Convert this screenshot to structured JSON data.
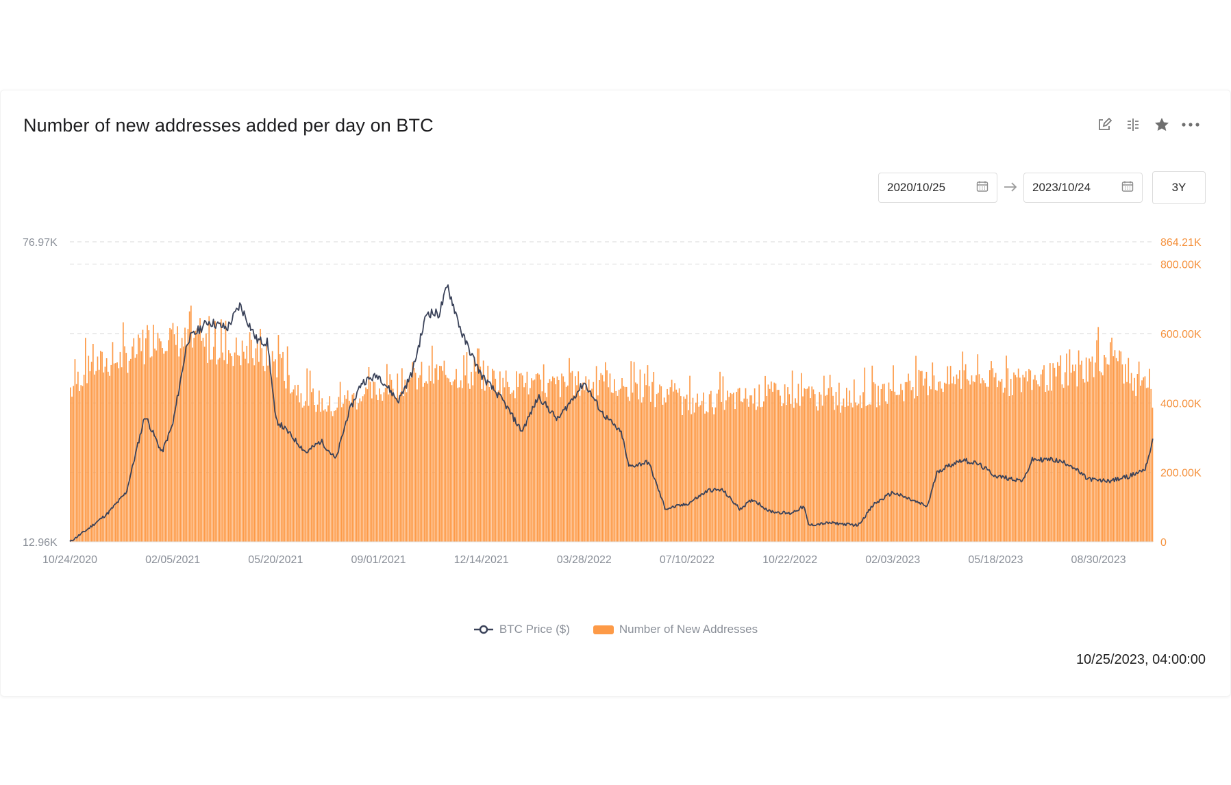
{
  "card": {
    "title": "Number of new addresses added per day on BTC",
    "toolbar": [
      {
        "name": "edit-icon"
      },
      {
        "name": "compare-icon"
      },
      {
        "name": "star-icon"
      },
      {
        "name": "more-icon"
      }
    ],
    "date_from": "2020/10/25",
    "date_to": "2023/10/24",
    "range_button": "3Y",
    "timestamp": "10/25/2023, 04:00:00"
  },
  "colors": {
    "bars": "#fd9a47",
    "line": "#3a4259",
    "right_axis_text": "#f5923e",
    "left_axis_text": "#8a8f98",
    "grid": "#d9d9d9"
  },
  "chart_data": {
    "type": "bar",
    "title": "Number of new addresses added per day on BTC",
    "x_tick_labels": [
      "10/24/2020",
      "02/05/2021",
      "05/20/2021",
      "09/01/2021",
      "12/14/2021",
      "03/28/2022",
      "07/10/2022",
      "10/22/2022",
      "02/03/2023",
      "05/18/2023",
      "08/30/2023"
    ],
    "x_range": [
      "10/24/2020",
      "10/24/2023"
    ],
    "y_left": {
      "labels": [
        "76.97K",
        "12.96K"
      ],
      "range": [
        12960,
        76970
      ],
      "series": "BTC Price ($)"
    },
    "y_right": {
      "labels": [
        "864.21K",
        "800.00K",
        "600.00K",
        "400.00K",
        "200.00K",
        "0"
      ],
      "range": [
        0,
        864210
      ],
      "series": "Number of New Addresses"
    },
    "grid": true,
    "legend_position": "bottom",
    "series": [
      {
        "name": "Number of New Addresses",
        "type": "bar",
        "axis": "right",
        "x": [
          "10/24/2020",
          "11/15/2020",
          "12/15/2020",
          "01/05/2021",
          "01/20/2021",
          "02/05/2021",
          "03/01/2021",
          "04/01/2021",
          "05/01/2021",
          "05/20/2021",
          "06/15/2021",
          "07/15/2021",
          "08/01/2021",
          "09/01/2021",
          "10/01/2021",
          "11/01/2021",
          "12/14/2021",
          "01/15/2022",
          "02/15/2022",
          "03/28/2022",
          "04/15/2022",
          "05/15/2022",
          "06/15/2022",
          "07/10/2022",
          "08/15/2022",
          "09/15/2022",
          "10/22/2022",
          "11/15/2022",
          "12/15/2022",
          "01/05/2023",
          "02/03/2023",
          "03/01/2023",
          "04/01/2023",
          "05/01/2023",
          "05/18/2023",
          "06/15/2023",
          "07/15/2023",
          "08/01/2023",
          "08/30/2023",
          "09/15/2023",
          "10/01/2023",
          "10/24/2023"
        ],
        "values": [
          450000,
          510000,
          530000,
          560000,
          610000,
          590000,
          570000,
          560000,
          540000,
          520000,
          430000,
          390000,
          410000,
          440000,
          470000,
          490000,
          480000,
          460000,
          450000,
          460000,
          450000,
          440000,
          420000,
          400000,
          410000,
          420000,
          430000,
          420000,
          410000,
          420000,
          440000,
          460000,
          470000,
          480000,
          460000,
          470000,
          480000,
          490000,
          520000,
          560000,
          450000,
          420000
        ]
      },
      {
        "name": "BTC Price ($)",
        "type": "line",
        "axis": "left",
        "x": [
          "10/24/2020",
          "11/10/2020",
          "12/01/2020",
          "12/20/2020",
          "01/08/2021",
          "01/25/2021",
          "02/05/2021",
          "02/20/2021",
          "03/13/2021",
          "04/01/2021",
          "04/14/2021",
          "05/01/2021",
          "05/12/2021",
          "05/20/2021",
          "06/01/2021",
          "06/20/2021",
          "07/05/2021",
          "07/20/2021",
          "08/01/2021",
          "08/15/2021",
          "09/01/2021",
          "09/21/2021",
          "10/05/2021",
          "10/20/2021",
          "11/01/2021",
          "11/10/2021",
          "11/25/2021",
          "12/14/2021",
          "01/05/2022",
          "01/24/2022",
          "02/10/2022",
          "03/01/2022",
          "03/28/2022",
          "04/15/2022",
          "05/05/2022",
          "05/12/2022",
          "06/01/2022",
          "06/18/2022",
          "07/10/2022",
          "08/01/2022",
          "08/15/2022",
          "09/01/2022",
          "09/15/2022",
          "10/01/2022",
          "10/22/2022",
          "11/05/2022",
          "11/10/2022",
          "12/01/2022",
          "12/30/2022",
          "01/15/2023",
          "02/03/2023",
          "03/10/2023",
          "03/20/2023",
          "04/14/2023",
          "05/01/2023",
          "05/18/2023",
          "06/15/2023",
          "06/24/2023",
          "07/15/2023",
          "08/01/2023",
          "08/18/2023",
          "08/30/2023",
          "09/12/2023",
          "10/01/2023",
          "10/16/2023",
          "10/24/2023"
        ],
        "values": [
          12960,
          15500,
          19000,
          23500,
          40000,
          32000,
          38000,
          56000,
          60000,
          58500,
          63500,
          56000,
          55500,
          39000,
          36500,
          32000,
          34500,
          30500,
          40000,
          47000,
          48500,
          43000,
          49000,
          62000,
          61500,
          67500,
          57000,
          48500,
          43000,
          36500,
          44000,
          39000,
          47000,
          40500,
          36000,
          29000,
          30000,
          20000,
          21000,
          24000,
          24000,
          20000,
          22000,
          19500,
          19000,
          20500,
          16500,
          17000,
          16500,
          21000,
          23500,
          20500,
          28000,
          30500,
          29500,
          27000,
          26000,
          30500,
          30500,
          29500,
          26500,
          26000,
          26000,
          27000,
          28500,
          34500
        ]
      }
    ]
  }
}
